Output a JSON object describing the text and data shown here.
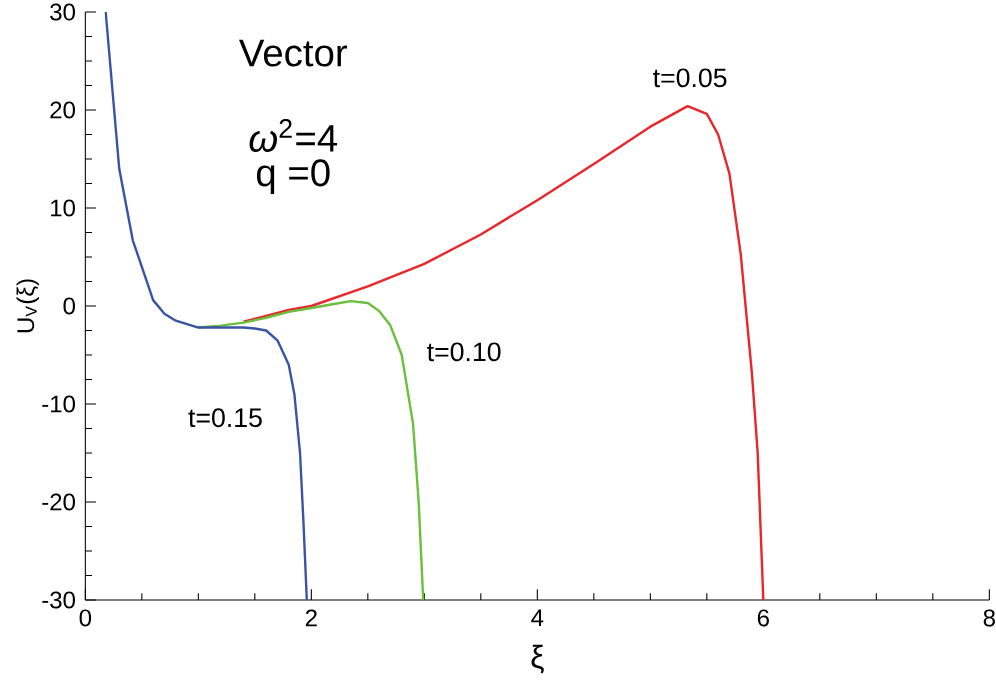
{
  "chart_data": {
    "type": "line",
    "xlabel": "ξ",
    "ylabel": "U$_{V}$(ξ)",
    "xlim": [
      0,
      8
    ],
    "ylim": [
      -30,
      30
    ],
    "xticks": [
      0,
      2,
      4,
      6,
      8
    ],
    "yticks": [
      -30,
      -20,
      -10,
      0,
      10,
      20,
      30
    ],
    "series": [
      {
        "color": "#e8262b",
        "x": [
          1.4,
          1.6,
          1.8,
          2.0,
          2.5,
          3.0,
          3.5,
          4.0,
          4.5,
          5.0,
          5.33,
          5.5,
          5.6,
          5.7,
          5.8,
          5.9,
          5.95,
          6.0
        ],
        "values": [
          -1.6,
          -1.0,
          -0.4,
          0.0,
          2.0,
          4.3,
          7.3,
          10.8,
          14.5,
          18.3,
          20.4,
          19.6,
          17.5,
          13.5,
          5.3,
          -7,
          -15,
          -30
        ]
      },
      {
        "color": "#6abf3c",
        "x": [
          1.0,
          1.2,
          1.4,
          1.6,
          1.8,
          2.0,
          2.2,
          2.35,
          2.5,
          2.6,
          2.7,
          2.8,
          2.9,
          2.95,
          2.99
        ],
        "values": [
          -2.2,
          -2.0,
          -1.7,
          -1.2,
          -0.6,
          -0.2,
          0.2,
          0.5,
          0.3,
          -0.5,
          -2,
          -5,
          -12,
          -20,
          -30
        ]
      },
      {
        "color": "#3a54a4",
        "x": [
          0.18,
          0.3,
          0.42,
          0.5,
          0.6,
          0.7,
          0.8,
          1.0,
          1.2,
          1.4,
          1.5,
          1.6,
          1.7,
          1.8,
          1.85,
          1.9,
          1.93,
          1.96
        ],
        "values": [
          30,
          14,
          6.7,
          4,
          0.6,
          -0.8,
          -1.5,
          -2.2,
          -2.2,
          -2.2,
          -2.3,
          -2.5,
          -3.5,
          -6,
          -9,
          -15,
          -22,
          -30
        ]
      }
    ],
    "annotations": [
      "Vector",
      "*ω*$^{2}$=4",
      "q =0",
      "t=0.05",
      "t=0.10",
      "t=0.15"
    ]
  }
}
